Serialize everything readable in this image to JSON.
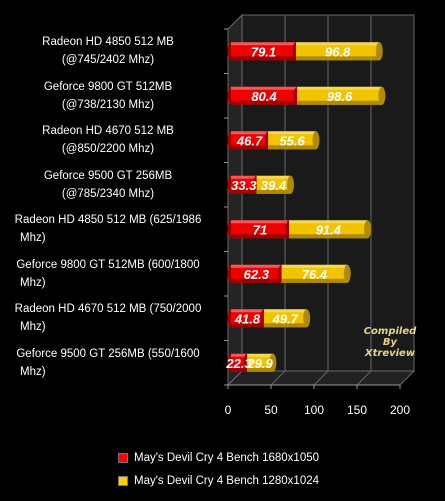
{
  "chart_data": {
    "type": "bar",
    "orientation": "horizontal",
    "categories": [
      "Radeon HD 4850 512 MB (@745/2402 Mhz)",
      "Geforce 9800 GT 512MB (@738/2130 Mhz)",
      "Radeon HD 4670 512 MB (@850/2200 Mhz)",
      "Geforce 9500 GT 256MB (@785/2340 Mhz)",
      "Radeon HD 4850 512 MB (625/1986 Mhz)",
      "Geforce 9800 GT 512MB  (600/1800 Mhz)",
      "Radeon HD 4670 512 MB (750/2000 Mhz)",
      "Geforce 9500 GT 256MB  (550/1600 Mhz)"
    ],
    "category_lines": [
      [
        "Radeon HD 4850 512 MB",
        "(@745/2402 Mhz)"
      ],
      [
        "Geforce 9800 GT 512MB",
        "(@738/2130 Mhz)"
      ],
      [
        "Radeon HD 4670 512 MB",
        "(@850/2200 Mhz)"
      ],
      [
        "Geforce 9500 GT 256MB",
        "(@785/2340 Mhz)"
      ],
      [
        "Radeon HD 4850 512 MB (625/1986",
        "Mhz)"
      ],
      [
        "Geforce 9800 GT 512MB  (600/1800",
        "Mhz)"
      ],
      [
        "Radeon HD 4670 512 MB (750/2000",
        "Mhz)"
      ],
      [
        "Geforce 9500 GT 256MB  (550/1600",
        "Mhz)"
      ]
    ],
    "series": [
      {
        "name": "May's Devil Cry 4 Bench 1680x1050",
        "color": "#ff0000",
        "values": [
          79.1,
          80.4,
          46.7,
          33.3,
          71,
          62.3,
          41.8,
          22.3
        ]
      },
      {
        "name": "May's Devil Cry 4 Bench 1280x1024",
        "color": "#ffcc00",
        "values": [
          96.8,
          98.6,
          55.6,
          39.4,
          91.4,
          76.4,
          49.7,
          29.9
        ]
      }
    ],
    "stacked": true,
    "xlim": [
      0,
      200
    ],
    "xticks": [
      0,
      50,
      100,
      150,
      200
    ],
    "legend_position": "bottom",
    "watermark": [
      "Compiled",
      "By",
      "Xtreview"
    ]
  }
}
